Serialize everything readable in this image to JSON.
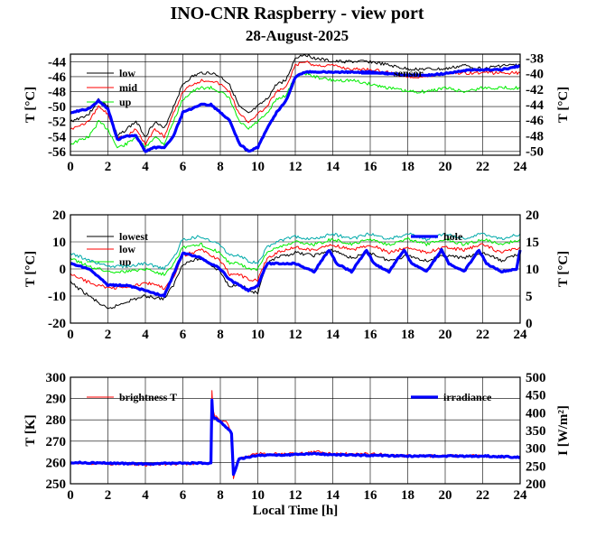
{
  "page": {
    "title": "INO-CNR Raspberry - view port",
    "subtitle": "28-August-2025"
  },
  "colors": {
    "black": "#000000",
    "red": "#ff0000",
    "green": "#00ee00",
    "blue": "#0000ff",
    "cyan": "#00aaaa"
  },
  "chart_data": [
    {
      "type": "line",
      "panel": "top",
      "xlim": [
        0,
        24
      ],
      "xticks": [
        0,
        2,
        4,
        6,
        8,
        10,
        12,
        14,
        16,
        18,
        20,
        22,
        24
      ],
      "ylabel": "T [°C]",
      "ylim": [
        -56.5,
        -43
      ],
      "yticks": [
        -56,
        -54,
        -52,
        -50,
        -48,
        -46,
        -44
      ],
      "ylabel2": "T [°C]",
      "ylim2": [
        -50.5,
        -37.5
      ],
      "yticks2": [
        -50,
        -48,
        -46,
        -44,
        -42,
        -40,
        -38
      ],
      "grid": true,
      "legend_position": "top-left",
      "series": [
        {
          "name": "low",
          "color": "#000000",
          "axis": "left",
          "x": [
            0,
            1,
            1.5,
            2,
            2.5,
            3,
            3.5,
            4,
            4.5,
            5,
            5.5,
            6,
            6.5,
            7,
            7.5,
            8,
            8.5,
            9,
            9.5,
            10,
            10.5,
            11,
            11.5,
            12,
            12.5,
            13,
            14,
            15,
            16,
            17,
            18,
            19,
            20,
            21,
            22,
            23,
            24
          ],
          "y": [
            -52,
            -51,
            -49,
            -50,
            -54,
            -53,
            -52,
            -54,
            -52,
            -53,
            -50,
            -47,
            -46,
            -45.5,
            -45.5,
            -46,
            -47,
            -50,
            -51,
            -50,
            -49,
            -47,
            -46.5,
            -43.5,
            -43,
            -43.5,
            -44,
            -44,
            -44,
            -44.5,
            -45,
            -45,
            -45,
            -44.5,
            -45,
            -44.5,
            -44.5
          ]
        },
        {
          "name": "mid",
          "color": "#ff0000",
          "axis": "left",
          "x": [
            0,
            1,
            1.5,
            2,
            2.5,
            3,
            3.5,
            4,
            4.5,
            5,
            5.5,
            6,
            6.5,
            7,
            7.5,
            8,
            8.5,
            9,
            9.5,
            10,
            10.5,
            11,
            11.5,
            12,
            12.5,
            13,
            14,
            15,
            16,
            17,
            18,
            19,
            20,
            21,
            22,
            23,
            24
          ],
          "y": [
            -53,
            -52,
            -50,
            -51,
            -54,
            -54,
            -53,
            -55,
            -53,
            -54,
            -51,
            -48,
            -47,
            -46.5,
            -46.5,
            -47,
            -48,
            -51,
            -52,
            -51,
            -50,
            -48,
            -47.5,
            -44.5,
            -44,
            -44.5,
            -44.5,
            -45,
            -45,
            -45.5,
            -46,
            -46,
            -45.5,
            -45.5,
            -45.5,
            -45.5,
            -45.5
          ]
        },
        {
          "name": "up",
          "color": "#00ee00",
          "axis": "left",
          "x": [
            0,
            1,
            1.5,
            2,
            2.5,
            3,
            3.5,
            4,
            4.5,
            5,
            5.5,
            6,
            6.5,
            7,
            7.5,
            8,
            8.5,
            9,
            9.5,
            10,
            10.5,
            11,
            11.5,
            12,
            12.5,
            13,
            14,
            15,
            16,
            17,
            18,
            19,
            20,
            21,
            22,
            23,
            24
          ],
          "y": [
            -55,
            -54,
            -52,
            -53,
            -55.5,
            -55,
            -54,
            -55.5,
            -54,
            -55,
            -52,
            -49,
            -48,
            -47.5,
            -47.5,
            -48,
            -49,
            -52,
            -53,
            -52,
            -51,
            -49,
            -48.5,
            -46,
            -45.5,
            -46,
            -46.5,
            -46.5,
            -47,
            -47.5,
            -48,
            -48,
            -47.5,
            -48,
            -47.5,
            -47.5,
            -47.5
          ]
        },
        {
          "name": "sensor",
          "color": "#0000ff",
          "axis": "right",
          "x": [
            0,
            1,
            1.5,
            2,
            2.5,
            3,
            3.5,
            4,
            4.5,
            5,
            5.5,
            6,
            6.5,
            7,
            7.5,
            8,
            8.5,
            9,
            9.5,
            10,
            10.5,
            11,
            11.5,
            12,
            12.5,
            13,
            14,
            15,
            16,
            17,
            18,
            19,
            20,
            21,
            22,
            23,
            24
          ],
          "y": [
            -45,
            -44.5,
            -43.5,
            -44.5,
            -48.5,
            -48,
            -48,
            -50,
            -49.5,
            -49.5,
            -48,
            -45,
            -44.5,
            -44,
            -44,
            -45,
            -46,
            -49,
            -50,
            -49.5,
            -47,
            -45,
            -43.5,
            -40.5,
            -39.8,
            -39.8,
            -39.8,
            -39.8,
            -39.8,
            -40,
            -40.2,
            -40.2,
            -40,
            -39.6,
            -39.5,
            -39.5,
            -39
          ]
        }
      ]
    },
    {
      "type": "line",
      "panel": "middle",
      "xlim": [
        0,
        24
      ],
      "xticks": [
        0,
        2,
        4,
        6,
        8,
        10,
        12,
        14,
        16,
        18,
        20,
        22,
        24
      ],
      "ylabel": "T [°C]",
      "ylim": [
        -20,
        20
      ],
      "yticks": [
        -20,
        -10,
        0,
        10,
        20
      ],
      "ylabel2": "T [°C]",
      "ylim2": [
        0,
        20
      ],
      "yticks2": [
        0,
        5,
        10,
        15,
        20
      ],
      "grid": true,
      "legend_position": "top",
      "series": [
        {
          "name": "lowest",
          "color": "#000000",
          "axis": "left",
          "x": [
            0,
            1,
            2,
            3,
            4,
            5,
            5.5,
            6,
            7,
            8,
            8.5,
            9,
            9.5,
            10,
            10.5,
            11,
            12,
            13,
            14,
            15,
            16,
            17,
            18,
            19,
            20,
            21,
            22,
            23,
            24
          ],
          "y": [
            -5,
            -10,
            -15,
            -12,
            -10,
            -11,
            -6,
            2,
            4,
            -1,
            -7,
            -5,
            -8,
            -9,
            2,
            4,
            6,
            5,
            7,
            4,
            6,
            3,
            5,
            3,
            5,
            4,
            6,
            3,
            6
          ]
        },
        {
          "name": "low",
          "color": "#ff0000",
          "axis": "left",
          "x": [
            0,
            1,
            2,
            3,
            4,
            5,
            5.5,
            6,
            7,
            8,
            8.5,
            9,
            9.5,
            10,
            10.5,
            11,
            12,
            13,
            14,
            15,
            16,
            17,
            18,
            19,
            20,
            21,
            22,
            23,
            24
          ],
          "y": [
            -2,
            -5,
            -7,
            -7,
            -5,
            -7,
            -3,
            5,
            7,
            3,
            -2,
            -2,
            -4,
            -4,
            4,
            6,
            8,
            7,
            9,
            7,
            9,
            6,
            8,
            6,
            8,
            7,
            9,
            6,
            8
          ]
        },
        {
          "name": "up",
          "color": "#00ee00",
          "axis": "left",
          "x": [
            0,
            1,
            2,
            3,
            4,
            5,
            5.5,
            6,
            7,
            8,
            8.5,
            9,
            9.5,
            10,
            10.5,
            11,
            12,
            13,
            14,
            15,
            16,
            17,
            18,
            19,
            20,
            21,
            22,
            23,
            24
          ],
          "y": [
            4,
            1,
            -1,
            -1,
            0,
            -2,
            2,
            8,
            9,
            6,
            2,
            2,
            0,
            0,
            6,
            8,
            10,
            9,
            11,
            9,
            11,
            9,
            11,
            9,
            11,
            9,
            11,
            9,
            11
          ]
        },
        {
          "name": "",
          "color": "#00aaaa",
          "axis": "left",
          "x": [
            0,
            1,
            2,
            3,
            4,
            5,
            5.5,
            6,
            7,
            8,
            8.5,
            9,
            9.5,
            10,
            10.5,
            11,
            12,
            13,
            14,
            15,
            16,
            17,
            18,
            19,
            20,
            21,
            22,
            23,
            24
          ],
          "y": [
            6,
            3,
            1,
            1,
            2,
            0,
            4,
            11,
            12,
            9,
            5,
            5,
            3,
            2,
            8,
            10,
            12,
            11,
            13,
            11,
            13,
            11,
            13,
            11,
            13,
            11,
            13,
            11,
            13
          ]
        },
        {
          "name": "hole",
          "color": "#0000ff",
          "axis": "right",
          "x": [
            0,
            1,
            2,
            3,
            4,
            5,
            5.5,
            6,
            7,
            8,
            8.5,
            9,
            9.5,
            10,
            10.5,
            11,
            12,
            13,
            13.8,
            14.2,
            15,
            15.8,
            16.2,
            17,
            17.8,
            18.2,
            19,
            19.8,
            20.2,
            21,
            21.8,
            22.2,
            23,
            23.8,
            24
          ],
          "y": [
            11,
            10,
            7,
            7,
            6,
            5,
            9,
            13,
            12,
            10,
            8,
            7,
            6,
            7,
            11,
            11,
            11,
            9.5,
            13.5,
            11,
            9.5,
            13.5,
            11,
            9.5,
            13.5,
            11,
            9.5,
            13.5,
            11,
            9.5,
            13.5,
            11,
            9.5,
            10,
            13.5
          ]
        }
      ]
    },
    {
      "type": "line",
      "panel": "bottom",
      "xlim": [
        0,
        24
      ],
      "xticks": [
        0,
        2,
        4,
        6,
        8,
        10,
        12,
        14,
        16,
        18,
        20,
        22,
        24
      ],
      "xlabel": "Local Time [h]",
      "ylabel": "T [K]",
      "ylim": [
        250,
        300
      ],
      "yticks": [
        250,
        260,
        270,
        280,
        290,
        300
      ],
      "ylabel2": "I [W/m²]",
      "ylim2": [
        200,
        500
      ],
      "yticks2": [
        200,
        250,
        300,
        350,
        400,
        450,
        500
      ],
      "grid": true,
      "legend_position": "top",
      "series": [
        {
          "name": "brightness T",
          "color": "#ff0000",
          "axis": "left",
          "x": [
            0,
            2,
            4,
            6,
            7.4,
            7.5,
            7.55,
            7.6,
            7.7,
            8,
            8.3,
            8.5,
            8.6,
            8.7,
            9,
            10,
            12,
            13,
            14,
            16,
            18,
            20,
            22,
            24
          ],
          "y": [
            260,
            259.5,
            259,
            259.5,
            259.5,
            260,
            293,
            285,
            282,
            279,
            280,
            276,
            272,
            253,
            262,
            264,
            264,
            265,
            264,
            264,
            263,
            263,
            263,
            262.5
          ]
        },
        {
          "name": "irradiance",
          "color": "#0000ff",
          "axis": "right",
          "x": [
            0,
            2,
            4,
            6,
            7.4,
            7.5,
            7.55,
            7.6,
            7.7,
            8,
            8.3,
            8.5,
            8.6,
            8.7,
            9,
            10,
            12,
            13,
            14,
            16,
            18,
            20,
            22,
            24
          ],
          "y": [
            260,
            258,
            256,
            258,
            258,
            260,
            435,
            390,
            385,
            375,
            360,
            350,
            340,
            225,
            270,
            280,
            282,
            285,
            282,
            280,
            278,
            278,
            278,
            275
          ]
        }
      ]
    }
  ]
}
